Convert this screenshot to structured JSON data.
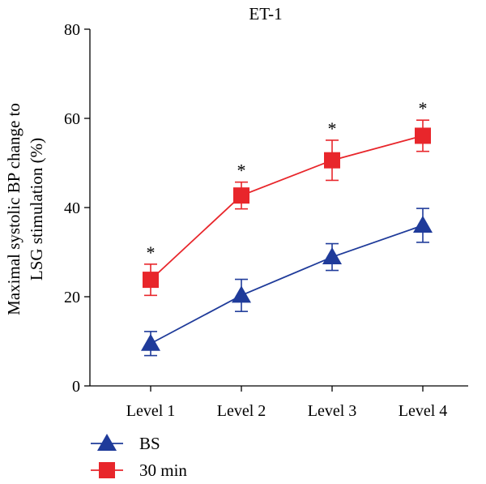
{
  "chart_data": {
    "type": "line",
    "title": "ET-1",
    "ylabel": "Maximal systolic BP change to LSG stimulation (%)",
    "ylabel_lines": [
      "Maximal systolic BP change to",
      "LSG stimulation (%)"
    ],
    "xlabel": "",
    "categories": [
      "Level 1",
      "Level 2",
      "Level 3",
      "Level 4"
    ],
    "ylim": [
      0,
      80
    ],
    "yticks": [
      0,
      20,
      40,
      60,
      80
    ],
    "grid": false,
    "legend_position": "bottom-left",
    "series": [
      {
        "name": "BS",
        "color": "#1f3b9a",
        "marker": "triangle",
        "values": [
          9.5,
          20.3,
          28.9,
          36.0
        ],
        "error": [
          2.7,
          3.6,
          3.0,
          3.8
        ],
        "significance": [
          "",
          "",
          "",
          ""
        ]
      },
      {
        "name": "30 min",
        "color": "#e8262b",
        "marker": "square",
        "values": [
          23.8,
          42.7,
          50.6,
          56.1
        ],
        "error": [
          3.5,
          3.0,
          4.5,
          3.5
        ],
        "significance": [
          "*",
          "*",
          "*",
          "*"
        ]
      }
    ]
  }
}
